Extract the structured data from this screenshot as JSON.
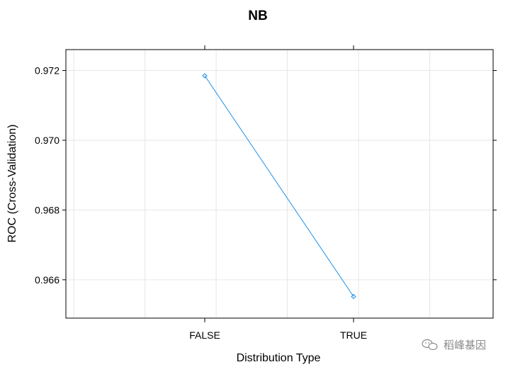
{
  "chart_data": {
    "type": "line",
    "title": "NB",
    "xlabel": "Distribution Type",
    "ylabel": "ROC (Cross-Validation)",
    "categories": [
      "FALSE",
      "TRUE"
    ],
    "series": [
      {
        "values": [
          0.97185,
          0.96552
        ],
        "color": "#1e90e6"
      }
    ],
    "yticks": [
      "0.966",
      "0.968",
      "0.970",
      "0.972"
    ],
    "ytick_values": [
      0.966,
      0.968,
      0.97,
      0.972
    ],
    "ylim": [
      0.9649,
      0.9726
    ],
    "grid": true,
    "marker": "open-diamond"
  },
  "watermark": {
    "text": "稻峰基因",
    "icon": "wechat-icon"
  }
}
